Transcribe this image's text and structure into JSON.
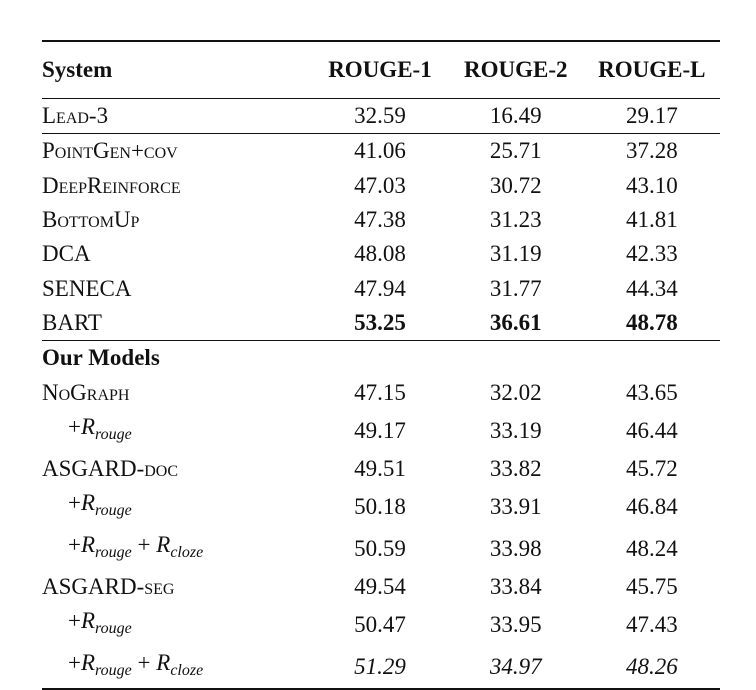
{
  "header": {
    "system": "System",
    "rouge1": "ROUGE-1",
    "rouge2": "ROUGE-2",
    "rougeL": "ROUGE-L"
  },
  "baselines": [
    {
      "name": "Lead-3",
      "r1": "32.59",
      "r2": "16.49",
      "rl": "29.17"
    },
    {
      "name": "PointGen+cov",
      "r1": "41.06",
      "r2": "25.71",
      "rl": "37.28"
    },
    {
      "name": "DeepReinforce",
      "r1": "47.03",
      "r2": "30.72",
      "rl": "43.10"
    },
    {
      "name": "BottomUp",
      "r1": "47.38",
      "r2": "31.23",
      "rl": "41.81"
    },
    {
      "name": "DCA",
      "r1": "48.08",
      "r2": "31.19",
      "rl": "42.33"
    },
    {
      "name": "SENECA",
      "r1": "47.94",
      "r2": "31.77",
      "rl": "44.34"
    },
    {
      "name": "BART",
      "r1": "53.25",
      "r2": "36.61",
      "rl": "48.78"
    }
  ],
  "our_models_label": "Our Models",
  "models": [
    {
      "name": "NoGraph",
      "r1": "47.15",
      "r2": "32.02",
      "rl": "43.65"
    },
    {
      "plus": "+",
      "var1": "R",
      "sub1": "rouge",
      "r1": "49.17",
      "r2": "33.19",
      "rl": "46.44"
    },
    {
      "name": "ASGARD-doc",
      "r1": "49.51",
      "r2": "33.82",
      "rl": "45.72"
    },
    {
      "plus": "+",
      "var1": "R",
      "sub1": "rouge",
      "r1": "50.18",
      "r2": "33.91",
      "rl": "46.84"
    },
    {
      "plus": "+",
      "var1": "R",
      "sub1": "rouge",
      "plus2": " + ",
      "var2": "R",
      "sub2": "cloze",
      "r1": "50.59",
      "r2": "33.98",
      "rl": "48.24"
    },
    {
      "name": "ASGARD-seg",
      "r1": "49.54",
      "r2": "33.84",
      "rl": "45.75"
    },
    {
      "plus": "+",
      "var1": "R",
      "sub1": "rouge",
      "r1": "50.47",
      "r2": "33.95",
      "rl": "47.43"
    },
    {
      "plus": "+",
      "var1": "R",
      "sub1": "rouge",
      "plus2": " + ",
      "var2": "R",
      "sub2": "cloze",
      "r1": "51.29",
      "r2": "34.97",
      "rl": "48.26"
    }
  ]
}
